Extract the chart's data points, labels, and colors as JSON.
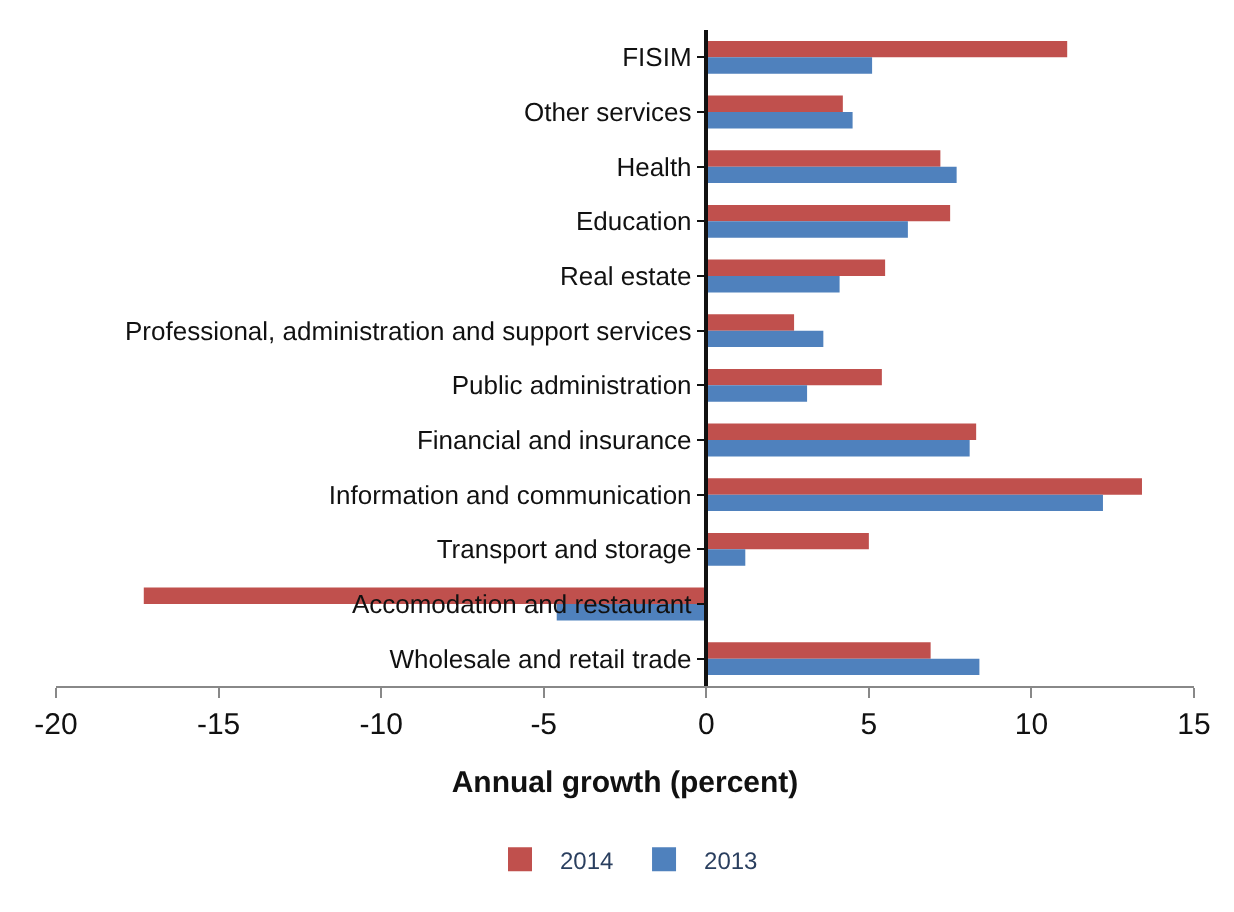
{
  "chart_data": {
    "type": "bar",
    "orientation": "horizontal",
    "xlabel": "Annual growth (percent)",
    "categories": [
      "FISIM",
      "Other services",
      "Health",
      "Education",
      "Real estate",
      "Professional, administration and support services",
      "Public administration",
      "Financial and insurance",
      "Information and communication",
      "Transport and storage",
      "Accomodation and restaurant",
      "Wholesale and retail trade"
    ],
    "series": [
      {
        "name": "2014",
        "color": "#c0504d",
        "values": [
          11.1,
          4.2,
          7.2,
          7.5,
          5.5,
          2.7,
          5.4,
          8.3,
          13.4,
          5.0,
          -17.3,
          6.9
        ]
      },
      {
        "name": "2013",
        "color": "#4f81bd",
        "values": [
          5.1,
          4.5,
          7.7,
          6.2,
          4.1,
          3.6,
          3.1,
          8.1,
          12.2,
          1.2,
          -4.6,
          8.4
        ]
      }
    ],
    "xlim": [
      -20,
      15
    ],
    "xticks": [
      -20,
      -15,
      -10,
      -5,
      0,
      5,
      10,
      15
    ],
    "grid": false,
    "legend": "bottom"
  }
}
